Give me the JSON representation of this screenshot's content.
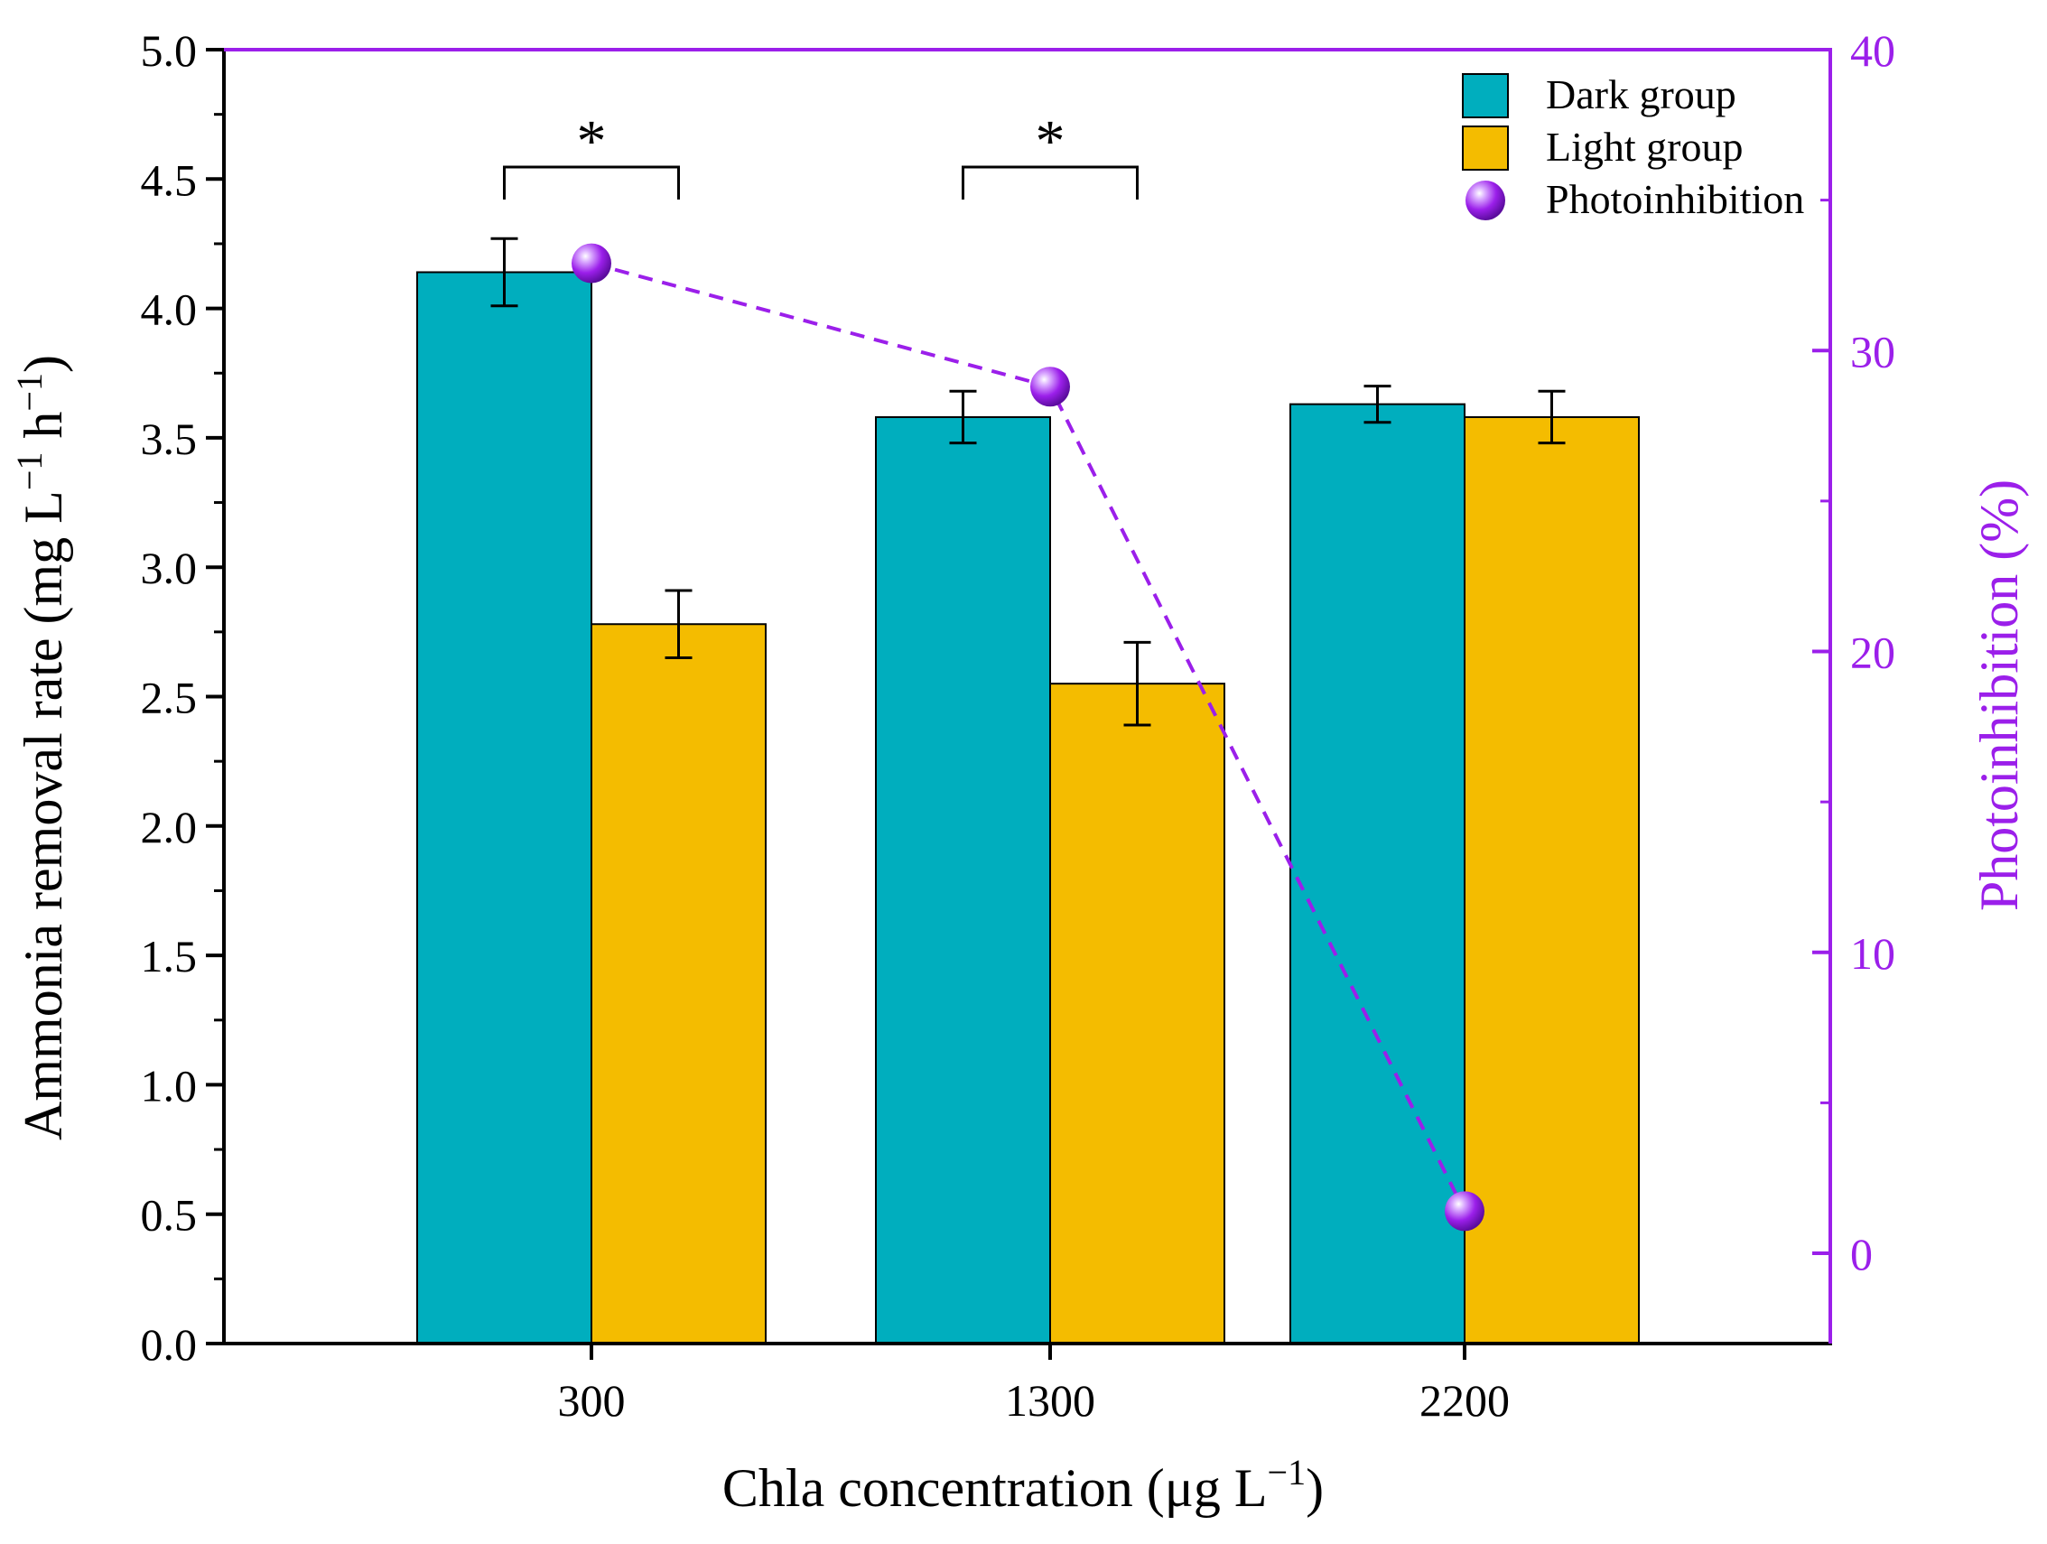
{
  "chart_data": {
    "type": "bar",
    "title": "",
    "xlabel": "Chla concentration (μg L",
    "xlabel_sup": "−1",
    "xlabel_close": ")",
    "ylabel": "Ammonia removal rate (mg L",
    "ylabel_sup1": "−1",
    "ylabel_mid": " h",
    "ylabel_sup2": "−1",
    "ylabel_close": ")",
    "y2label": "Photoinhibition (%)",
    "categories": [
      "300",
      "1300",
      "2200"
    ],
    "ylim": [
      0,
      5
    ],
    "yticks": [
      "0.0",
      "0.5",
      "1.0",
      "1.5",
      "2.0",
      "2.5",
      "3.0",
      "3.5",
      "4.0",
      "4.5",
      "5.0"
    ],
    "y2lim": [
      -3,
      40
    ],
    "y2ticks": [
      "0",
      "10",
      "20",
      "30",
      "40"
    ],
    "series": [
      {
        "name": "Dark group",
        "values": [
          4.14,
          3.58,
          3.63
        ],
        "errors": [
          0.13,
          0.1,
          0.07
        ],
        "color": "#00AEBE"
      },
      {
        "name": "Light group",
        "values": [
          2.78,
          2.55,
          3.58
        ],
        "errors": [
          0.13,
          0.16,
          0.1
        ],
        "color": "#F4BC00"
      }
    ],
    "line_series": {
      "name": "Photoinhibition",
      "axis": "right",
      "values": [
        32.9,
        28.8,
        1.4
      ],
      "color": "#9B1FEA"
    },
    "significance": [
      {
        "category": "300",
        "label": "*"
      },
      {
        "category": "1300",
        "label": "*"
      }
    ],
    "legend_position": "top-right",
    "right_axis_color": "#9B1FEA",
    "grid": false
  }
}
